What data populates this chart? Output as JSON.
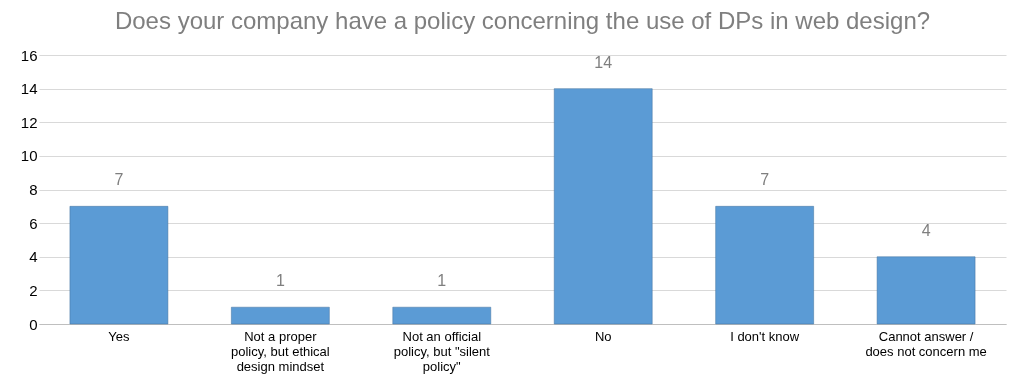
{
  "chart_data": {
    "type": "bar",
    "title": "Does your company have a policy concerning the use of DPs in web design?",
    "categories": [
      "Yes",
      "Not a proper policy, but ethical design mindset",
      "Not an official policy, but \"silent policy\"",
      "No",
      "I don't know",
      "Cannot answer / does not concern me"
    ],
    "values": [
      7,
      1,
      1,
      14,
      7,
      4
    ],
    "color": "#5b9bd5",
    "ylim": [
      0,
      16
    ],
    "yticks": [
      0,
      2,
      4,
      6,
      8,
      10,
      12,
      14,
      16
    ],
    "grid": "y",
    "data_labels": true
  }
}
